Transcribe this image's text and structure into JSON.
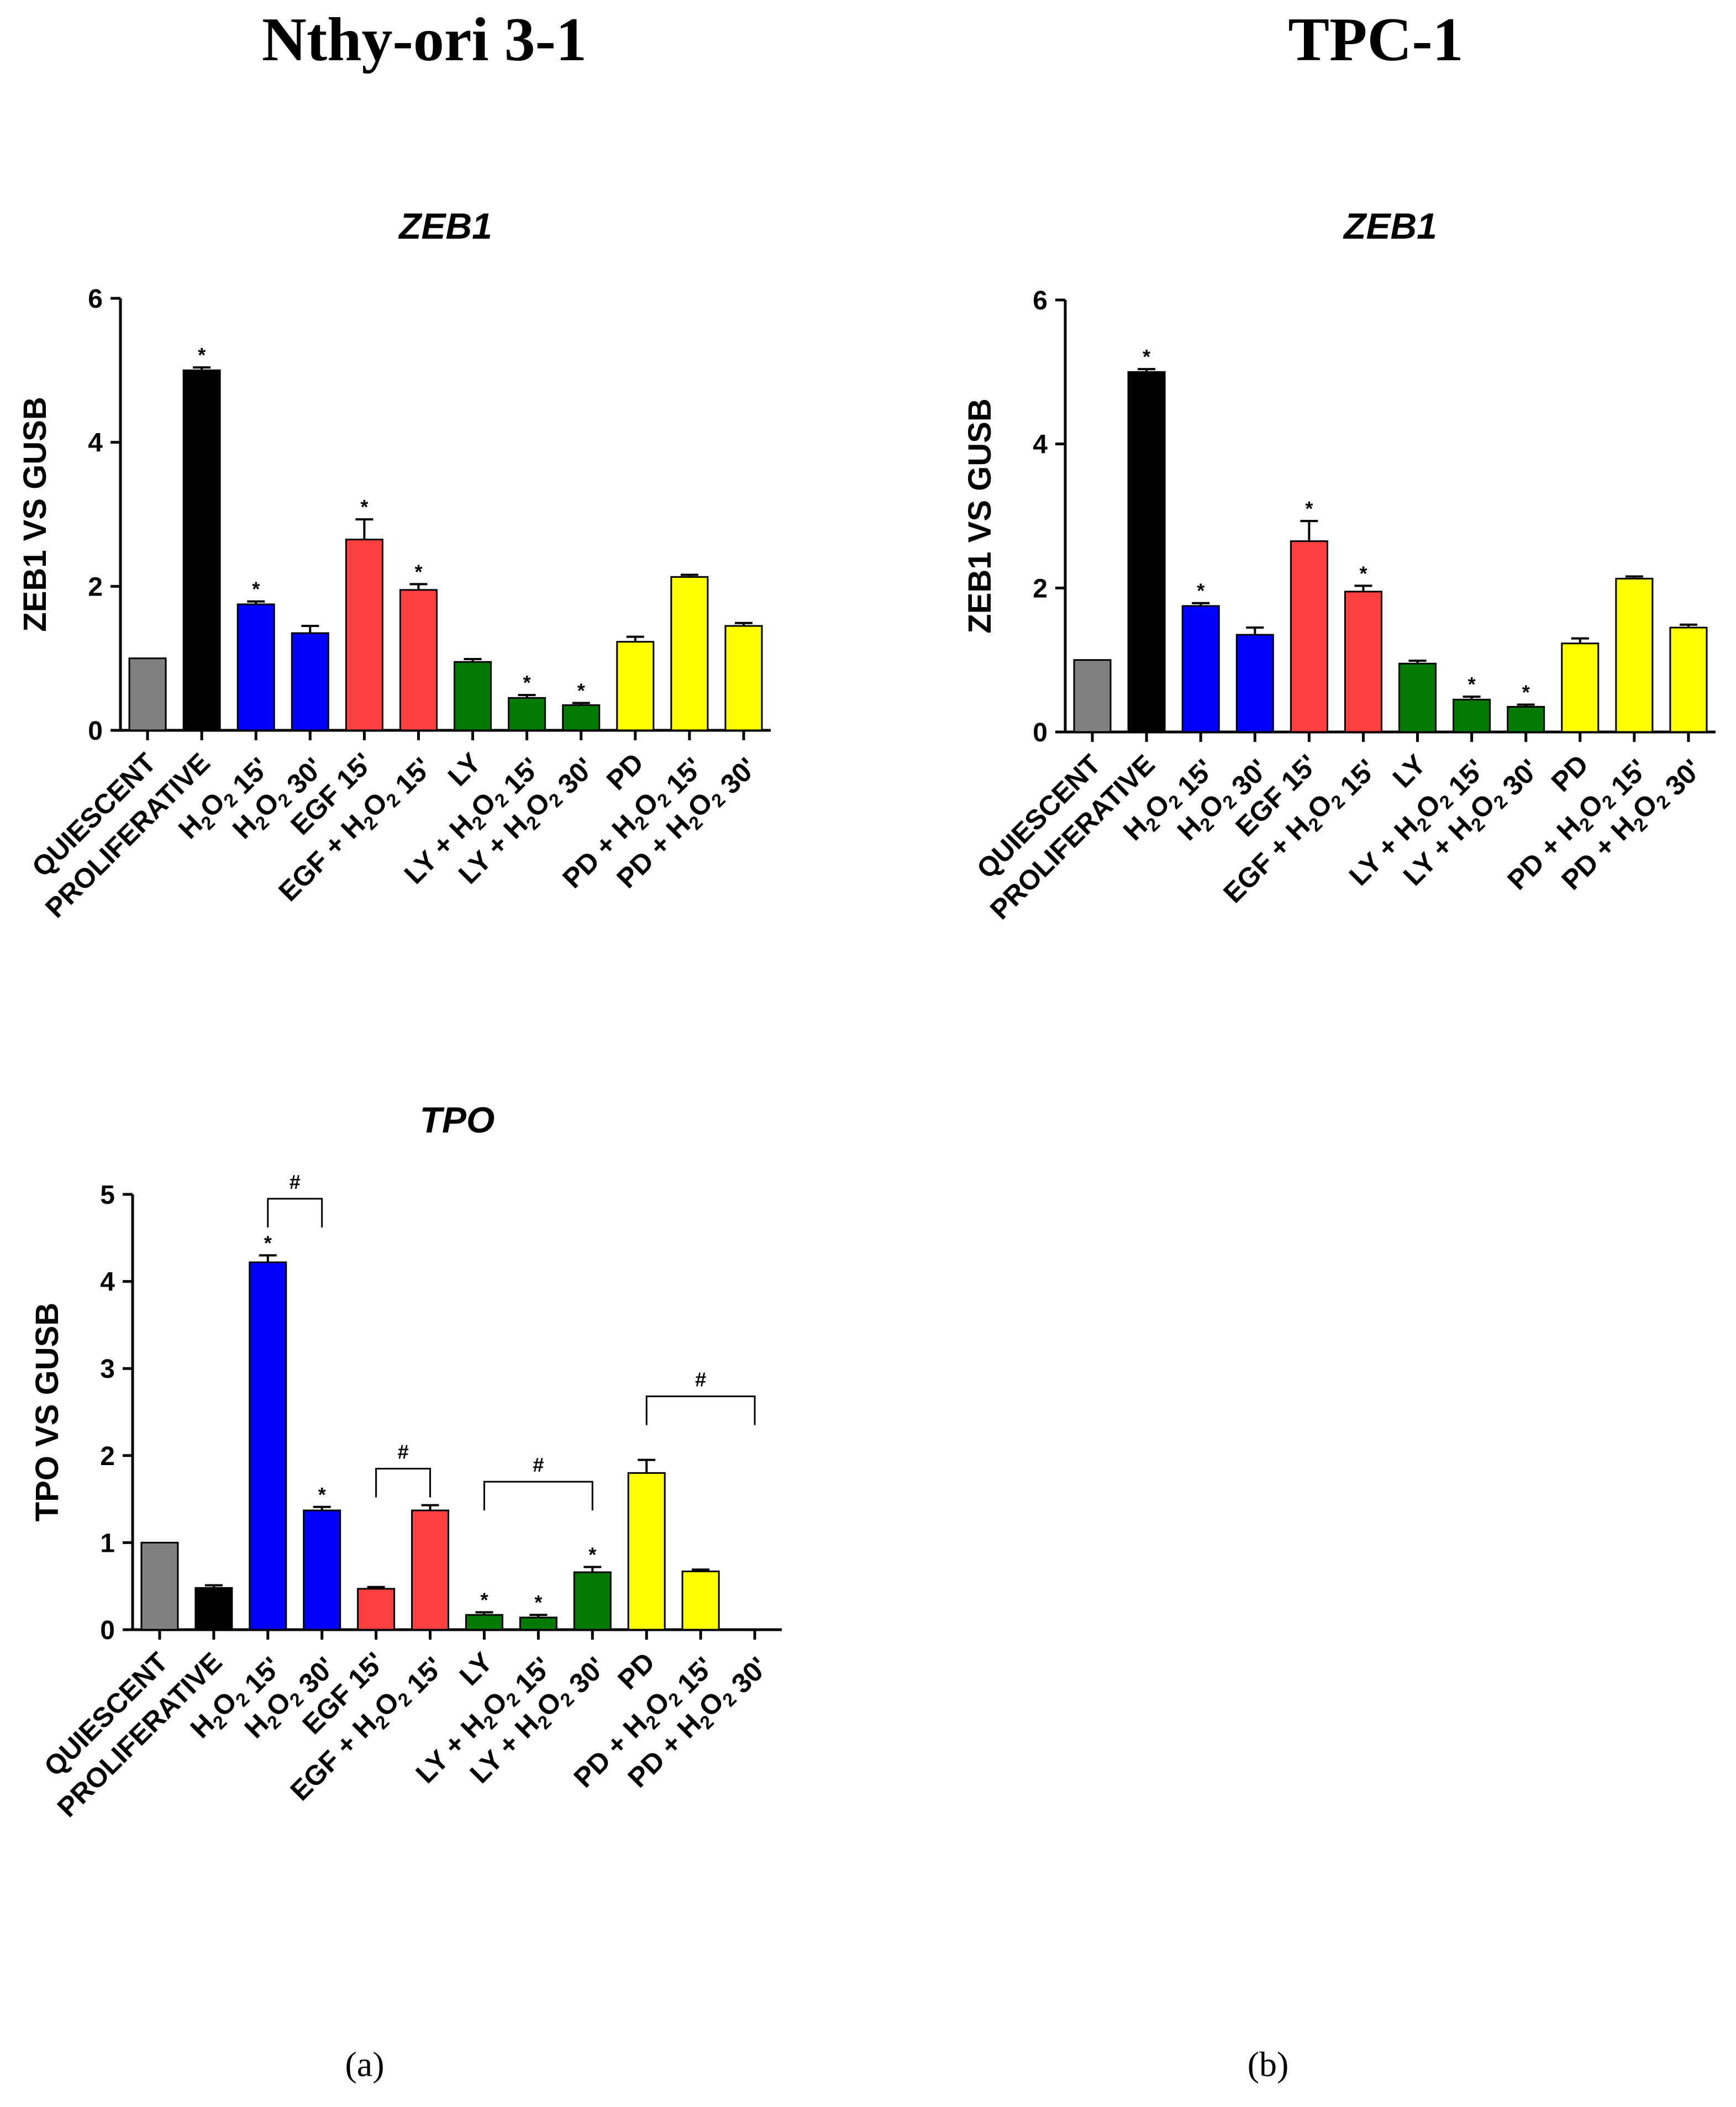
{
  "column_titles": {
    "left": "Nthy-ori 3-1",
    "right": "TPC-1"
  },
  "panel_labels": {
    "a": "(a)",
    "b": "(b)"
  },
  "colors": {
    "gray": "#808080",
    "black": "#000000",
    "blue": "#0000ff",
    "red": "#ff4040",
    "green": "#007a00",
    "yellow": "#ffff00"
  },
  "chart_data": [
    {
      "type": "bar",
      "id": "zeb1-nthy",
      "title": "ZEB1",
      "ylabel": "ZEB1 VS GUSB",
      "ylim": [
        0,
        6
      ],
      "yticks": [
        0,
        2,
        4,
        6
      ],
      "categories": [
        "QUIESCENT",
        "PROLIFERATIVE",
        "H2O2 15'",
        "H2O2 30'",
        "EGF 15'",
        "EGF + H2O2 15'",
        "LY",
        "LY + H2O2 15'",
        "LY + H2O2 30'",
        "PD",
        "PD + H2O2 15'",
        "PD + H2O2 30'"
      ],
      "values": [
        1.0,
        5.0,
        1.75,
        1.35,
        2.65,
        1.95,
        0.95,
        0.45,
        0.35,
        1.23,
        2.13,
        1.45
      ],
      "errors": [
        0,
        0.04,
        0.04,
        0.1,
        0.28,
        0.08,
        0.04,
        0.04,
        0.03,
        0.07,
        0.03,
        0.04
      ],
      "colors": [
        "gray",
        "black",
        "blue",
        "blue",
        "red",
        "red",
        "green",
        "green",
        "green",
        "yellow",
        "yellow",
        "yellow"
      ],
      "significance": [
        "",
        "*",
        "*",
        "",
        "*",
        "*",
        "",
        "*",
        "*",
        "",
        "",
        ""
      ],
      "brackets": []
    },
    {
      "type": "bar",
      "id": "zeb1-tpc",
      "title": "ZEB1",
      "ylabel": "ZEB1 VS GUSB",
      "ylim": [
        0,
        6
      ],
      "yticks": [
        0,
        2,
        4,
        6
      ],
      "categories": [
        "QUIESCENT",
        "PROLIFERATIVE",
        "H2O2 15'",
        "H2O2 30'",
        "EGF 15'",
        "EGF + H2O2 15'",
        "LY",
        "LY + H2O2 15'",
        "LY + H2O2 30'",
        "PD",
        "PD + H2O2 15'",
        "PD + H2O2 30'"
      ],
      "values": [
        1.0,
        5.0,
        1.75,
        1.35,
        2.65,
        1.95,
        0.95,
        0.45,
        0.35,
        1.23,
        2.13,
        1.45
      ],
      "errors": [
        0,
        0.04,
        0.04,
        0.1,
        0.28,
        0.08,
        0.04,
        0.04,
        0.03,
        0.07,
        0.03,
        0.04
      ],
      "colors": [
        "gray",
        "black",
        "blue",
        "blue",
        "red",
        "red",
        "green",
        "green",
        "green",
        "yellow",
        "yellow",
        "yellow"
      ],
      "significance": [
        "",
        "*",
        "*",
        "",
        "*",
        "*",
        "",
        "*",
        "*",
        "",
        "",
        ""
      ],
      "brackets": []
    },
    {
      "type": "bar",
      "id": "tpo-nthy",
      "title": "TPO",
      "ylabel": "TPO VS GUSB",
      "ylim": [
        0,
        5
      ],
      "yticks": [
        0,
        1,
        2,
        3,
        4,
        5
      ],
      "categories": [
        "QUIESCENT",
        "PROLIFERATIVE",
        "H2O2 15'",
        "H2O2 30'",
        "EGF 15'",
        "EGF + H2O2 15'",
        "LY",
        "LY + H2O2 15'",
        "LY + H2O2 30'",
        "PD",
        "PD + H2O2 15'",
        "PD + H2O2 30'"
      ],
      "values": [
        1.0,
        0.48,
        4.22,
        1.37,
        0.47,
        1.37,
        0.17,
        0.14,
        0.66,
        1.8,
        0.67,
        0.0
      ],
      "errors": [
        0,
        0.03,
        0.08,
        0.04,
        0.02,
        0.06,
        0.03,
        0.03,
        0.06,
        0.15,
        0.02,
        0
      ],
      "colors": [
        "gray",
        "black",
        "blue",
        "blue",
        "red",
        "red",
        "green",
        "green",
        "green",
        "yellow",
        "yellow",
        "yellow"
      ],
      "significance": [
        "",
        "",
        "*",
        "*",
        "",
        "",
        "*",
        "*",
        "*",
        "",
        "",
        ""
      ],
      "brackets": [
        {
          "from": 2,
          "to": 3,
          "level": 4.95,
          "label": "#"
        },
        {
          "from": 4,
          "to": 5,
          "level": 1.85,
          "label": "#"
        },
        {
          "from": 6,
          "to": 8,
          "level": 1.7,
          "label": "#"
        },
        {
          "from": 9,
          "to": 11,
          "level": 2.68,
          "label": "#"
        }
      ]
    }
  ]
}
